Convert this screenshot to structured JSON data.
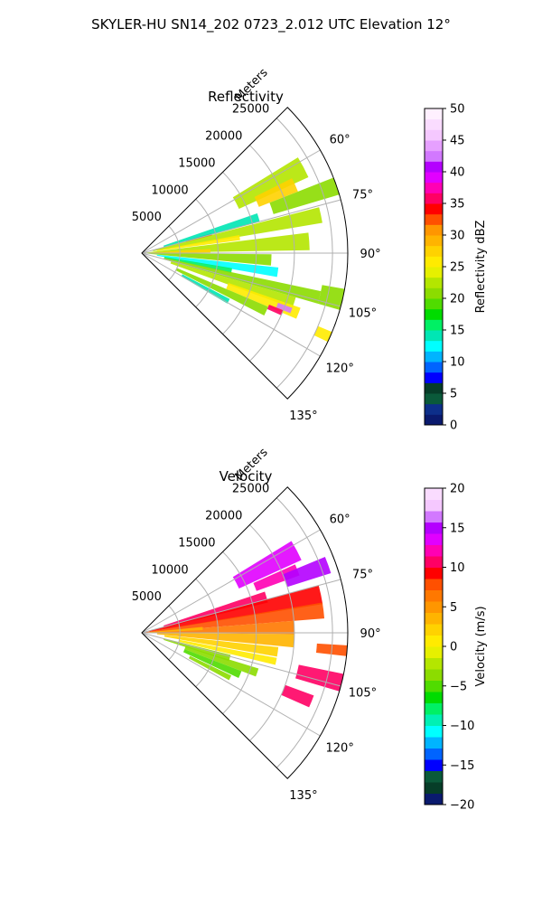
{
  "figure": {
    "suptitle": "SKYLER-HU  SN14_202  0723_2.012 UTC Elevation 12°"
  },
  "chart_data": [
    {
      "type": "heatmap",
      "title": "Reflectivity",
      "radial_label": "Meters",
      "r_ticks": [
        5000,
        10000,
        15000,
        20000,
        25000
      ],
      "r_tick_labels": [
        "5000",
        "10000",
        "15000",
        "20000",
        "25000"
      ],
      "theta_ticks": [
        60,
        75,
        90,
        105,
        120,
        135
      ],
      "theta_tick_labels": [
        "60°",
        "75°",
        "90°",
        "105°",
        "120°",
        "135°"
      ],
      "theta_range": [
        45,
        135
      ],
      "r_range": [
        0,
        27000
      ],
      "grid": true,
      "colorbar": {
        "label": "Reflectivity dBZ",
        "range": [
          0,
          50
        ],
        "ticks": [
          0,
          5,
          10,
          15,
          20,
          25,
          30,
          35,
          40,
          45,
          50
        ],
        "tick_labels": [
          "0",
          "5",
          "10",
          "15",
          "20",
          "25",
          "30",
          "35",
          "40",
          "45",
          "50"
        ],
        "colors": [
          "#0a1a6e",
          "#0d2f8a",
          "#0a5a3a",
          "#063d28",
          "#0000ff",
          "#0064ff",
          "#00b4ff",
          "#00ffff",
          "#00e6b4",
          "#00f064",
          "#00dc00",
          "#50dc00",
          "#8cdc00",
          "#b4e600",
          "#e6f000",
          "#ffeb00",
          "#ffd200",
          "#ffb400",
          "#ff9600",
          "#ff5000",
          "#ff0000",
          "#ff0064",
          "#ff00b4",
          "#e100ff",
          "#b400ff",
          "#d278ff",
          "#e6a0ff",
          "#f5c8ff",
          "#fadcff",
          "#fff0ff"
        ]
      },
      "cells": [
        {
          "az": 62,
          "r0": 14000,
          "r1": 24000,
          "w": 7,
          "v": 22
        },
        {
          "az": 66,
          "r0": 16500,
          "r1": 22000,
          "w": 5,
          "v": 27
        },
        {
          "az": 71,
          "r0": 18000,
          "r1": 27000,
          "w": 5,
          "v": 20
        },
        {
          "az": 75,
          "r0": 6000,
          "r1": 9500,
          "w": 2,
          "v": 35
        },
        {
          "az": 73,
          "r0": 3000,
          "r1": 16000,
          "w": 4,
          "v": 14
        },
        {
          "az": 78,
          "r0": 1500,
          "r1": 24000,
          "w": 5,
          "v": 22
        },
        {
          "az": 81,
          "r0": 2000,
          "r1": 13000,
          "w": 3,
          "v": 26
        },
        {
          "az": 86,
          "r0": 500,
          "r1": 22000,
          "w": 6,
          "v": 23
        },
        {
          "az": 88,
          "r0": 1000,
          "r1": 9000,
          "w": 3,
          "v": 27
        },
        {
          "az": 93,
          "r0": 500,
          "r1": 17000,
          "w": 5,
          "v": 20
        },
        {
          "az": 98,
          "r0": 2000,
          "r1": 18000,
          "w": 4,
          "v": 13
        },
        {
          "az": 101,
          "r0": 3000,
          "r1": 12000,
          "w": 3,
          "v": 16
        },
        {
          "az": 104,
          "r0": 3000,
          "r1": 24000,
          "w": 4,
          "v": 21
        },
        {
          "az": 103,
          "r0": 24000,
          "r1": 27000,
          "w": 6,
          "v": 20
        },
        {
          "az": 108,
          "r0": 4000,
          "r1": 21000,
          "w": 4,
          "v": 22
        },
        {
          "az": 111,
          "r0": 12000,
          "r1": 22000,
          "w": 4,
          "v": 25
        },
        {
          "az": 111,
          "r0": 19000,
          "r1": 21000,
          "w": 2,
          "v": 42
        },
        {
          "az": 113,
          "r0": 18000,
          "r1": 20000,
          "w": 2,
          "v": 36
        },
        {
          "az": 114,
          "r0": 25000,
          "r1": 27000,
          "w": 3,
          "v": 25
        },
        {
          "az": 115,
          "r0": 5000,
          "r1": 18000,
          "w": 4,
          "v": 20
        },
        {
          "az": 119,
          "r0": 6000,
          "r1": 13000,
          "w": 3,
          "v": 14
        }
      ]
    },
    {
      "type": "heatmap",
      "title": "Velocity",
      "radial_label": "Meters",
      "r_ticks": [
        5000,
        10000,
        15000,
        20000,
        25000
      ],
      "r_tick_labels": [
        "5000",
        "10000",
        "15000",
        "20000",
        "25000"
      ],
      "theta_ticks": [
        60,
        75,
        90,
        105,
        120,
        135
      ],
      "theta_tick_labels": [
        "60°",
        "75°",
        "90°",
        "105°",
        "120°",
        "135°"
      ],
      "theta_range": [
        45,
        135
      ],
      "r_range": [
        0,
        27000
      ],
      "grid": true,
      "colorbar": {
        "label": "Velocity (m/s)",
        "range": [
          -20,
          20
        ],
        "ticks": [
          -20,
          -15,
          -10,
          -5,
          0,
          5,
          10,
          15,
          20
        ],
        "tick_labels": [
          "−20",
          "−15",
          "−10",
          "−5",
          "0",
          "5",
          "10",
          "15",
          "20"
        ],
        "colors": [
          "#0a1a6e",
          "#063d28",
          "#0a5a3a",
          "#0000ff",
          "#0064ff",
          "#00b4ff",
          "#00ffff",
          "#00f0b4",
          "#00f064",
          "#00dc00",
          "#50dc00",
          "#8cdc00",
          "#b4e600",
          "#e6f000",
          "#ffeb00",
          "#ffd200",
          "#ffb400",
          "#ff9600",
          "#ff7800",
          "#ff5000",
          "#ff0000",
          "#ff0064",
          "#ff00b4",
          "#e100ff",
          "#b400ff",
          "#d278ff",
          "#f5c8ff",
          "#fadcff"
        ]
      },
      "cells": [
        {
          "az": 62,
          "r0": 14000,
          "r1": 23000,
          "w": 7,
          "v": 14
        },
        {
          "az": 68,
          "r0": 16000,
          "r1": 22000,
          "w": 4,
          "v": 12
        },
        {
          "az": 70,
          "r0": 20000,
          "r1": 26000,
          "w": 5,
          "v": 15
        },
        {
          "az": 74,
          "r0": 3000,
          "r1": 17000,
          "w": 5,
          "v": 10
        },
        {
          "az": 78,
          "r0": 1000,
          "r1": 24000,
          "w": 6,
          "v": 9
        },
        {
          "az": 83,
          "r0": 500,
          "r1": 24000,
          "w": 5,
          "v": 8
        },
        {
          "az": 88,
          "r0": 500,
          "r1": 20000,
          "w": 5,
          "v": 7
        },
        {
          "az": 86,
          "r0": 1000,
          "r1": 8000,
          "w": 3,
          "v": 4
        },
        {
          "az": 93,
          "r0": 2000,
          "r1": 20000,
          "w": 5,
          "v": 4
        },
        {
          "az": 98,
          "r0": 3000,
          "r1": 18000,
          "w": 4,
          "v": 2
        },
        {
          "az": 102,
          "r0": 5000,
          "r1": 18000,
          "w": 3,
          "v": 0
        },
        {
          "az": 106,
          "r0": 3000,
          "r1": 12000,
          "w": 4,
          "v": -3
        },
        {
          "az": 109,
          "r0": 6000,
          "r1": 16000,
          "w": 4,
          "v": -4
        },
        {
          "az": 113,
          "r0": 6000,
          "r1": 14000,
          "w": 4,
          "v": -5
        },
        {
          "az": 117,
          "r0": 7000,
          "r1": 13000,
          "w": 3,
          "v": -4
        },
        {
          "az": 104,
          "r0": 21000,
          "r1": 27000,
          "w": 5,
          "v": 11
        },
        {
          "az": 112,
          "r0": 20000,
          "r1": 24000,
          "w": 4,
          "v": 10
        },
        {
          "az": 95,
          "r0": 23000,
          "r1": 27000,
          "w": 3,
          "v": 8
        }
      ]
    }
  ]
}
